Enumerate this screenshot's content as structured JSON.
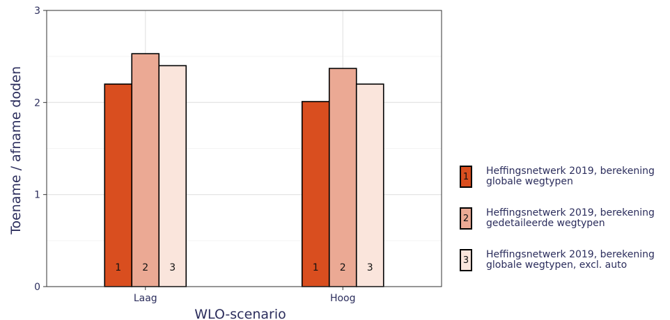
{
  "chart_data": {
    "type": "bar",
    "categories": [
      "Laag",
      "Hoog"
    ],
    "series": [
      {
        "name": "Heffingsnetwerk 2019, berekening\nglobale wegtypen",
        "key_label": "1",
        "color": "#d94e1f",
        "values": [
          2.2,
          2.01
        ]
      },
      {
        "name": "Heffingsnetwerk 2019, berekening\ngedetaileerde wegtypen",
        "key_label": "2",
        "color": "#eba994",
        "values": [
          2.53,
          2.37
        ]
      },
      {
        "name": "Heffingsnetwerk 2019, berekening\nglobale wegtypen, excl. auto",
        "key_label": "3",
        "color": "#fae5dc",
        "values": [
          2.4,
          2.2
        ]
      }
    ],
    "xlabel": "WLO-scenario",
    "ylabel": "Toename / afname doden",
    "ylim": [
      0,
      3
    ],
    "yticks": [
      0,
      1,
      2,
      3
    ],
    "grid": true,
    "legend_position": "right"
  }
}
